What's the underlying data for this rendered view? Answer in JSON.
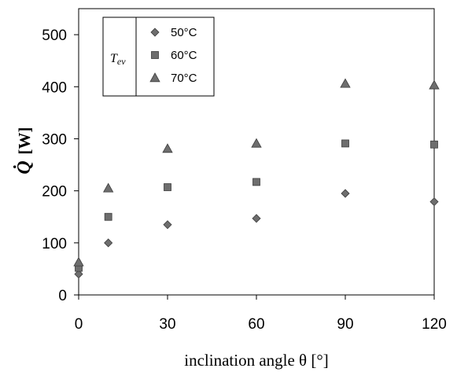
{
  "chart_data": {
    "type": "scatter",
    "x_ticks": [
      "0",
      "30",
      "60",
      "90",
      "120"
    ],
    "y_ticks": [
      "0",
      "100",
      "200",
      "300",
      "400",
      "500"
    ],
    "xlim": [
      0,
      120
    ],
    "ylim": [
      0,
      550
    ],
    "xlabel": "inclination angle θ [°]",
    "ylabel_symbol": "Q̇",
    "ylabel_unit": "[W]",
    "grid": false,
    "legend": {
      "title": "Tev",
      "title_main": "T",
      "title_sub": "ev",
      "placement": "top-left"
    },
    "series": [
      {
        "name": "50°C",
        "marker": "diamond",
        "color": "#6e6e6e",
        "x": [
          0,
          10,
          30,
          60,
          90,
          120
        ],
        "y": [
          40,
          100,
          135,
          147,
          195,
          179
        ]
      },
      {
        "name": "60°C",
        "marker": "square",
        "color": "#6e6e6e",
        "x": [
          0,
          10,
          30,
          60,
          90,
          120
        ],
        "y": [
          52,
          150,
          207,
          217,
          291,
          289
        ]
      },
      {
        "name": "70°C",
        "marker": "triangle",
        "color": "#6e6e6e",
        "x": [
          0,
          10,
          30,
          60,
          90,
          120
        ],
        "y": [
          63,
          205,
          281,
          291,
          406,
          403
        ]
      }
    ]
  }
}
